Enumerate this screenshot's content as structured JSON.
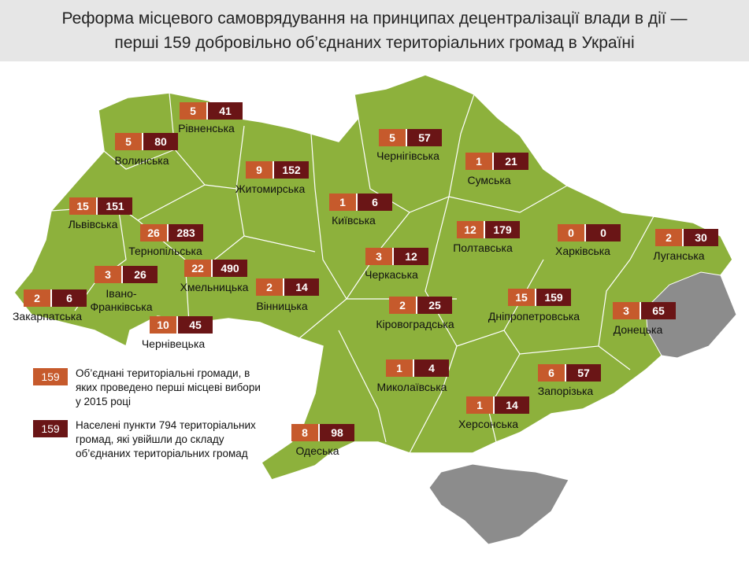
{
  "title": [
    "Реформа місцевого самоврядування на принципах децентралізації влади в дії —",
    "перші 159 добровільно об’єднаних територіальних громад в Україні"
  ],
  "regions": [
    {
      "name": "Рівненська",
      "communities": 5,
      "settlements": 41
    },
    {
      "name": "Волинська",
      "communities": 5,
      "settlements": 80
    },
    {
      "name": "Житомирська",
      "communities": 9,
      "settlements": 152
    },
    {
      "name": "Чернігівська",
      "communities": 5,
      "settlements": 57
    },
    {
      "name": "Сумська",
      "communities": 1,
      "settlements": 21
    },
    {
      "name": "Львівська",
      "communities": 15,
      "settlements": 151
    },
    {
      "name": "Тернопільська",
      "communities": 26,
      "settlements": 283
    },
    {
      "name": "Київська",
      "communities": 1,
      "settlements": 6
    },
    {
      "name": "Полтавська",
      "communities": 12,
      "settlements": 179
    },
    {
      "name": "Харківська",
      "communities": 0,
      "settlements": 0
    },
    {
      "name": "Луганська",
      "communities": 2,
      "settlements": 30
    },
    {
      "name": "Черкаська",
      "communities": 3,
      "settlements": 12
    },
    {
      "name": "Івано-Франківська",
      "communities": 3,
      "settlements": 26
    },
    {
      "name": "Хмельницька",
      "communities": 22,
      "settlements": 490
    },
    {
      "name": "Закарпатська",
      "communities": 2,
      "settlements": 6
    },
    {
      "name": "Вінницька",
      "communities": 2,
      "settlements": 14
    },
    {
      "name": "Кіровоградська",
      "communities": 2,
      "settlements": 25
    },
    {
      "name": "Дніпропетровська",
      "communities": 15,
      "settlements": 159
    },
    {
      "name": "Донецька",
      "communities": 3,
      "settlements": 65
    },
    {
      "name": "Чернівецька",
      "communities": 10,
      "settlements": 45
    },
    {
      "name": "Миколаївська",
      "communities": 1,
      "settlements": 4
    },
    {
      "name": "Запорізька",
      "communities": 6,
      "settlements": 57
    },
    {
      "name": "Херсонська",
      "communities": 1,
      "settlements": 14
    },
    {
      "name": "Одеська",
      "communities": 8,
      "settlements": 98
    }
  ],
  "legend": [
    {
      "sample": "159",
      "text": "Об’єднані територіальні громади, в яких проведено перші місцеві вибори у 2015 році"
    },
    {
      "sample": "159",
      "text": "Населені пункти 794 територіальних громад, які увійшли до складу об’єднаних територіальних громад"
    }
  ]
}
